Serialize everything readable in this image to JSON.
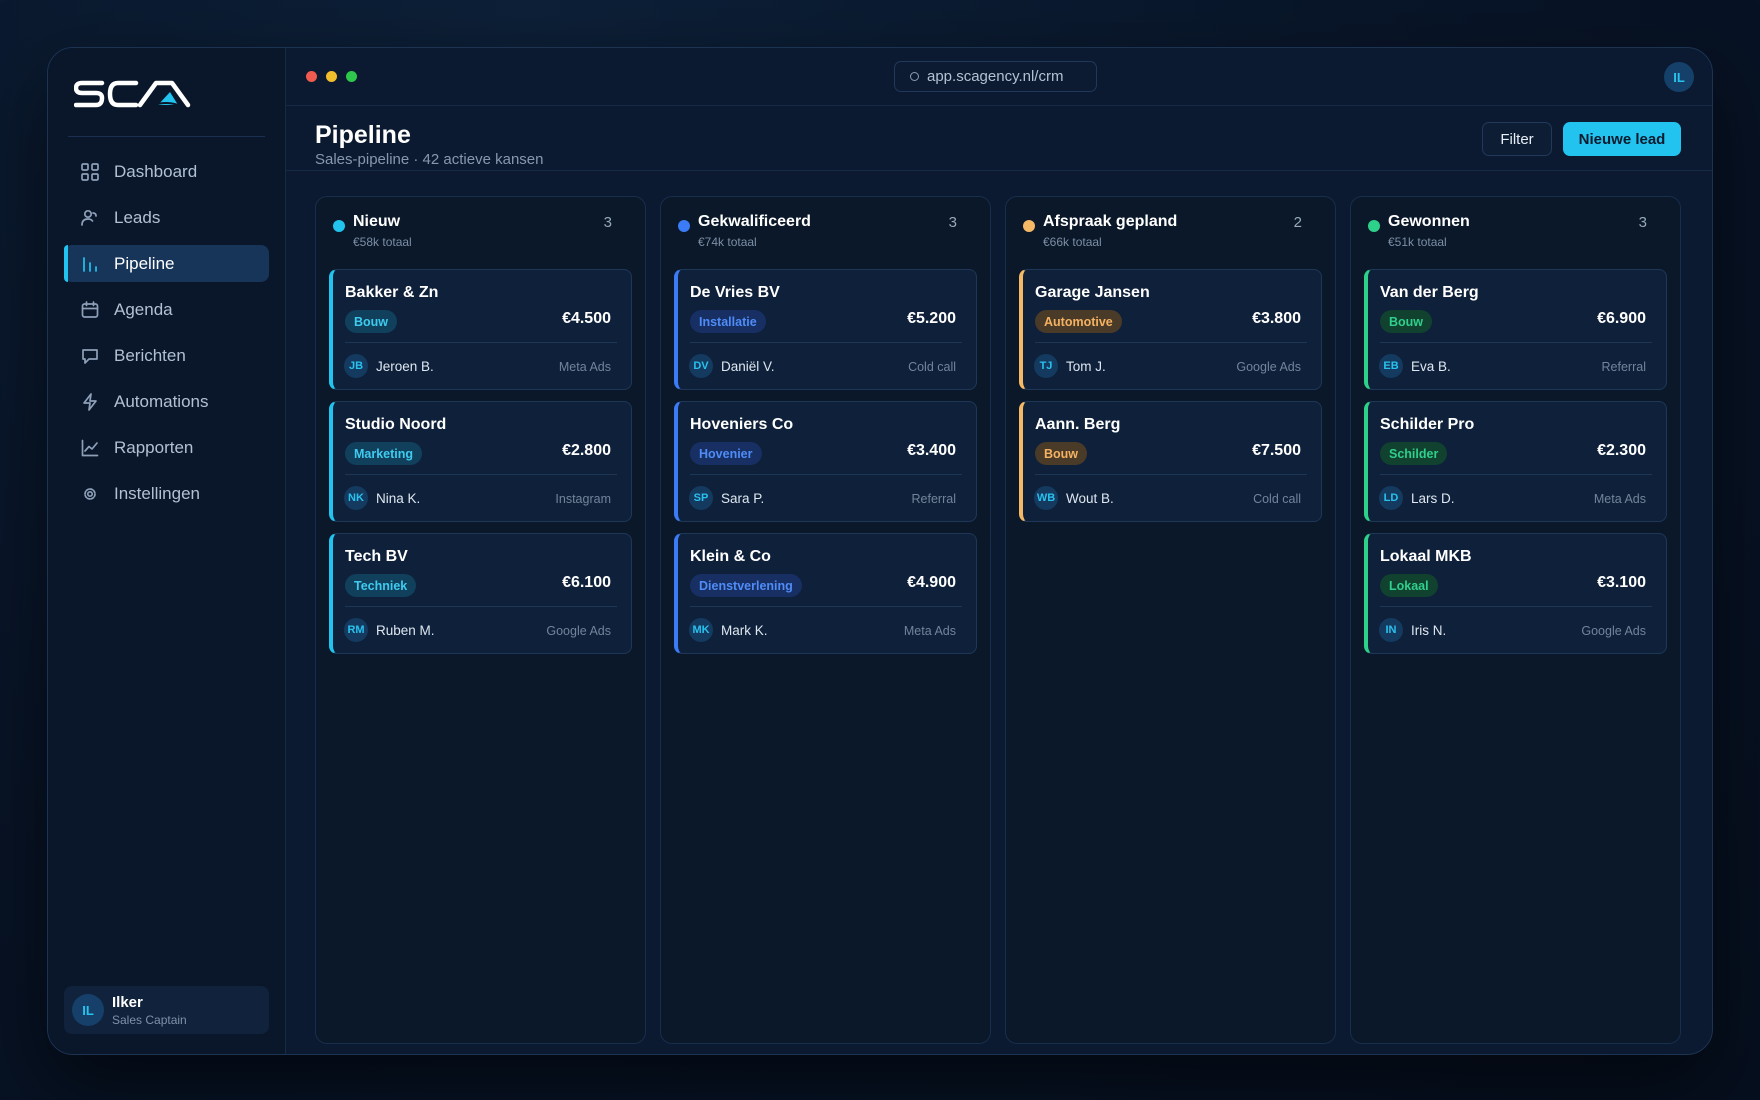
{
  "app": {
    "logo_text": "SCA"
  },
  "sidebar": {
    "items": [
      {
        "label": "Dashboard",
        "icon": "grid-icon",
        "active": false
      },
      {
        "label": "Leads",
        "icon": "users-icon",
        "active": false
      },
      {
        "label": "Pipeline",
        "icon": "bar-chart-icon",
        "active": true
      },
      {
        "label": "Agenda",
        "icon": "calendar-icon",
        "active": false
      },
      {
        "label": "Berichten",
        "icon": "message-icon",
        "active": false
      },
      {
        "label": "Automations",
        "icon": "bolt-icon",
        "active": false
      },
      {
        "label": "Rapporten",
        "icon": "line-chart-icon",
        "active": false
      },
      {
        "label": "Instellingen",
        "icon": "gear-icon",
        "active": false
      }
    ],
    "user": {
      "initials": "IL",
      "name": "Ilker",
      "role": "Sales Captain"
    }
  },
  "topbar": {
    "url": "app.scagency.nl/crm",
    "avatar_initials": "IL"
  },
  "header": {
    "title": "Pipeline",
    "subtitle": "Sales-pipeline · 42 actieve kansen",
    "filter_label": "Filter",
    "new_lead_label": "Nieuwe lead"
  },
  "columns": [
    {
      "name": "Nieuw",
      "total": "€58k totaal",
      "count": "3",
      "color": "#22c3ee",
      "cards": [
        {
          "name": "Bakker & Zn",
          "tag": "Bouw",
          "amount": "€4.500",
          "initials": "JB",
          "owner": "Jeroen B.",
          "source": "Meta Ads"
        },
        {
          "name": "Studio Noord",
          "tag": "Marketing",
          "amount": "€2.800",
          "initials": "NK",
          "owner": "Nina K.",
          "source": "Instagram"
        },
        {
          "name": "Tech BV",
          "tag": "Techniek",
          "amount": "€6.100",
          "initials": "RM",
          "owner": "Ruben M.",
          "source": "Google Ads"
        }
      ]
    },
    {
      "name": "Gekwalificeerd",
      "total": "€74k totaal",
      "count": "3",
      "color": "#3b7cf6",
      "cards": [
        {
          "name": "De Vries BV",
          "tag": "Installatie",
          "amount": "€5.200",
          "initials": "DV",
          "owner": "Daniël V.",
          "source": "Cold call"
        },
        {
          "name": "Hoveniers Co",
          "tag": "Hovenier",
          "amount": "€3.400",
          "initials": "SP",
          "owner": "Sara P.",
          "source": "Referral"
        },
        {
          "name": "Klein & Co",
          "tag": "Dienstverlening",
          "amount": "€4.900",
          "initials": "MK",
          "owner": "Mark K.",
          "source": "Meta Ads"
        }
      ]
    },
    {
      "name": "Afspraak gepland",
      "total": "€66k totaal",
      "count": "2",
      "color": "#f5b865",
      "cards": [
        {
          "name": "Garage Jansen",
          "tag": "Automotive",
          "amount": "€3.800",
          "initials": "TJ",
          "owner": "Tom J.",
          "source": "Google Ads"
        },
        {
          "name": "Aann. Berg",
          "tag": "Bouw",
          "amount": "€7.500",
          "initials": "WB",
          "owner": "Wout B.",
          "source": "Cold call"
        }
      ]
    },
    {
      "name": "Gewonnen",
      "total": "€51k totaal",
      "count": "3",
      "color": "#2dd18a",
      "cards": [
        {
          "name": "Van der Berg",
          "tag": "Bouw",
          "amount": "€6.900",
          "initials": "EB",
          "owner": "Eva B.",
          "source": "Referral"
        },
        {
          "name": "Schilder Pro",
          "tag": "Schilder",
          "amount": "€2.300",
          "initials": "LD",
          "owner": "Lars D.",
          "source": "Meta Ads"
        },
        {
          "name": "Lokaal MKB",
          "tag": "Lokaal",
          "amount": "€3.100",
          "initials": "IN",
          "owner": "Iris N.",
          "source": "Google Ads"
        }
      ]
    }
  ]
}
